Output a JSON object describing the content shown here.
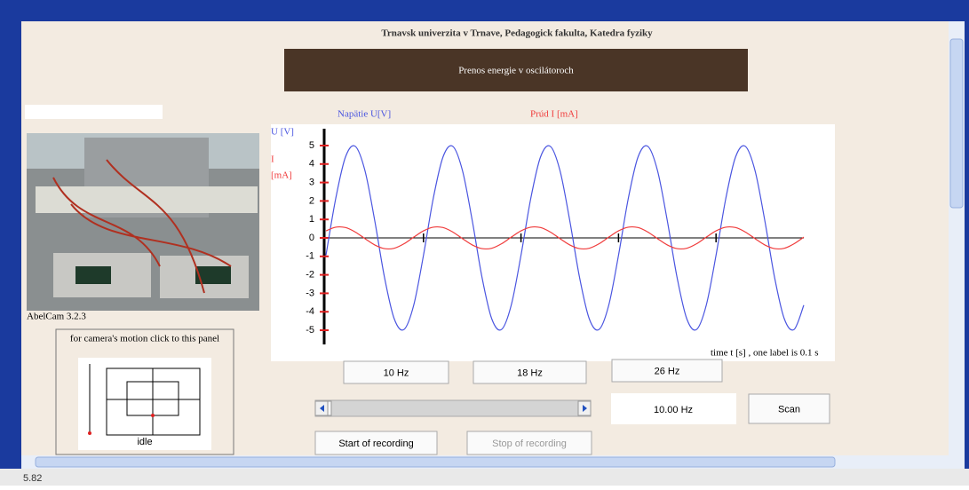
{
  "header": {
    "institution": "Trnavsk univerzita v Trnave, Pedagogick fakulta, Katedra fyziky",
    "title": "Prenos energie v oscilátoroch"
  },
  "camera": {
    "caption": "AbelCam 3.2.3",
    "panel_label": "for camera's motion click to this panel",
    "status": "idle"
  },
  "chart_data": {
    "type": "line",
    "x": [
      0,
      0.01,
      0.02,
      0.03,
      0.04,
      0.05,
      0.06,
      0.07,
      0.08,
      0.09,
      0.1,
      0.11,
      0.12,
      0.13,
      0.14,
      0.15,
      0.16,
      0.17,
      0.18,
      0.19,
      0.2,
      0.21,
      0.22,
      0.23,
      0.24,
      0.25,
      0.26,
      0.27,
      0.28,
      0.29,
      0.3,
      0.31,
      0.32,
      0.33,
      0.34,
      0.35,
      0.36,
      0.37,
      0.38,
      0.39,
      0.4,
      0.41,
      0.42,
      0.43,
      0.44,
      0.45,
      0.46,
      0.47,
      0.48,
      0.49
    ],
    "series": [
      {
        "name": "Napätie U[V]",
        "color": "#4a55e0",
        "values": [
          -0.94,
          2.13,
          4.38,
          4.96,
          3.64,
          0.94,
          -2.13,
          -4.38,
          -4.96,
          -3.64,
          -0.94,
          2.13,
          4.38,
          4.96,
          3.64,
          0.94,
          -2.13,
          -4.38,
          -4.96,
          -3.64,
          -0.94,
          2.13,
          4.38,
          4.96,
          3.64,
          0.94,
          -2.13,
          -4.38,
          -4.96,
          -3.64,
          -0.94,
          2.13,
          4.38,
          4.96,
          3.64,
          0.94,
          -2.13,
          -4.38,
          -4.96,
          -3.64,
          -0.94,
          2.13,
          4.38,
          4.96,
          3.64,
          0.94,
          -2.13,
          -4.38,
          -4.96,
          -3.64
        ]
      },
      {
        "name": "Prúd I [mA]",
        "color": "#f03c3c",
        "values": [
          0.38,
          0.58,
          0.56,
          0.32,
          -0.04,
          -0.38,
          -0.58,
          -0.56,
          -0.32,
          0.04,
          0.38,
          0.58,
          0.56,
          0.32,
          -0.04,
          -0.38,
          -0.58,
          -0.56,
          -0.32,
          0.04,
          0.38,
          0.58,
          0.56,
          0.32,
          -0.04,
          -0.38,
          -0.58,
          -0.56,
          -0.32,
          0.04,
          0.38,
          0.58,
          0.56,
          0.32,
          -0.04,
          -0.38,
          -0.58,
          -0.56,
          -0.32,
          0.04,
          0.38,
          0.58,
          0.56,
          0.32,
          -0.04,
          -0.38,
          -0.58,
          -0.56,
          -0.32,
          0.04
        ]
      }
    ],
    "u_axis_label": "U [V]",
    "i_axis_label": [
      "I",
      "[mA]"
    ],
    "x_label": "time t [s] , one label is 0.1 s",
    "xlim": [
      0,
      0.49
    ],
    "xticks": [
      0.1,
      0.2,
      0.3,
      0.4
    ],
    "ylim": [
      -5.6,
      5.6
    ],
    "yticks": [
      -5,
      -4,
      -3,
      -2,
      -1,
      0,
      1,
      2,
      3,
      4,
      5
    ]
  },
  "controls": {
    "presets": [
      "10 Hz",
      "18 Hz",
      "26 Hz"
    ],
    "frequency_display": "10.00 Hz",
    "scan": "Scan",
    "start": "Start of recording",
    "stop": "Stop of recording"
  },
  "status": "5.82"
}
